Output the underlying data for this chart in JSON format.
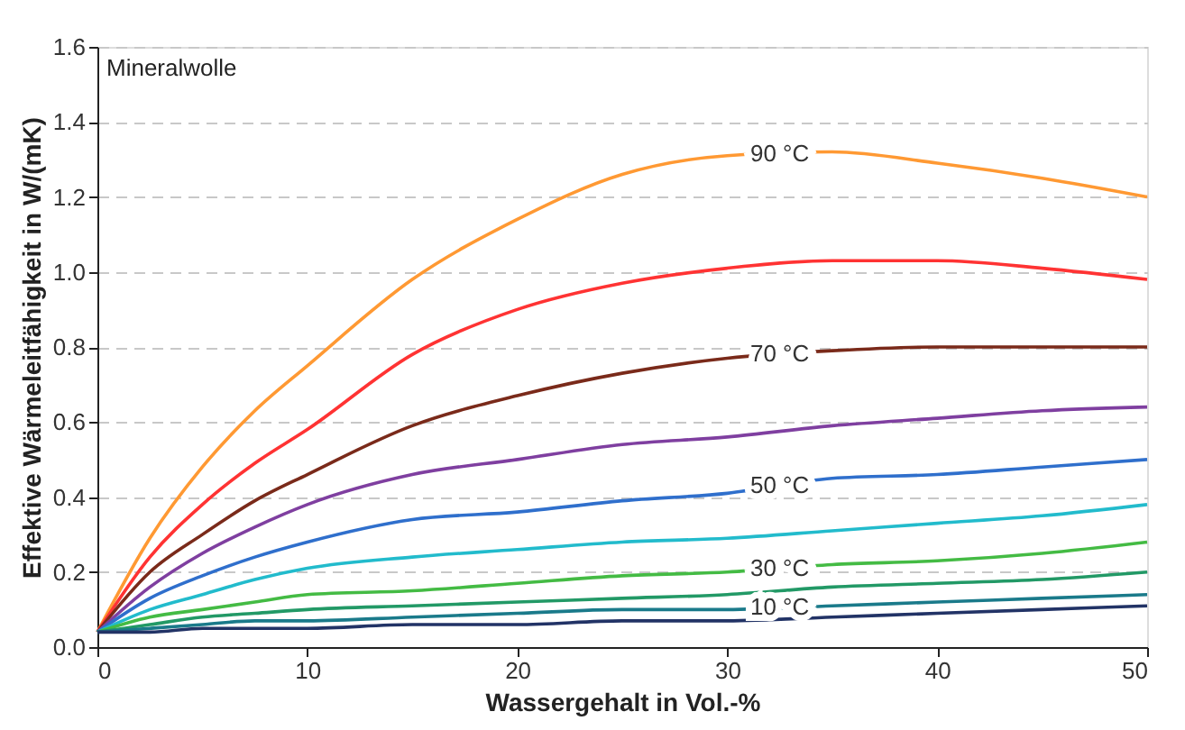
{
  "chart_data": {
    "type": "line",
    "xlabel": "Wassergehalt in Vol.-%",
    "ylabel": "Effektive Wärmeleitfähigkeit in W/(mK)",
    "annotations": [
      "Mineralwolle"
    ],
    "x": [
      0,
      2.5,
      5,
      7.5,
      10,
      15,
      20,
      25,
      30,
      35,
      40,
      45,
      50
    ],
    "xlim": [
      0,
      50
    ],
    "xticks": [
      0,
      10,
      20,
      30,
      40,
      50
    ],
    "ylim": [
      0,
      1.6
    ],
    "yticks": [
      {
        "value": 0,
        "label": "0.0"
      },
      0.2,
      0.4,
      0.6,
      0.8,
      {
        "value": 1,
        "label": "1.0"
      },
      1.2,
      1.4,
      1.6
    ],
    "grid": "y",
    "legend": false,
    "marker": "none",
    "line_style": "solid",
    "series": [
      {
        "name": "90 °C",
        "color": "#ff9933",
        "values": [
          0.04,
          0.29,
          0.48,
          0.63,
          0.75,
          0.98,
          1.14,
          1.26,
          1.31,
          1.32,
          1.29,
          1.25,
          1.2
        ]
      },
      {
        "color": "#ff3333",
        "values": [
          0.04,
          0.24,
          0.38,
          0.49,
          0.58,
          0.78,
          0.9,
          0.97,
          1.01,
          1.03,
          1.03,
          1.01,
          0.98
        ]
      },
      {
        "name": "70 °C",
        "color": "#7a2a1a",
        "values": [
          0.04,
          0.2,
          0.3,
          0.39,
          0.46,
          0.59,
          0.67,
          0.73,
          0.77,
          0.79,
          0.8,
          0.8,
          0.8
        ]
      },
      {
        "color": "#7f3fa0",
        "values": [
          0.04,
          0.16,
          0.25,
          0.32,
          0.38,
          0.46,
          0.5,
          0.54,
          0.56,
          0.59,
          0.61,
          0.63,
          0.64
        ]
      },
      {
        "name": "50 °C",
        "color": "#2f6fcc",
        "values": [
          0.04,
          0.13,
          0.19,
          0.24,
          0.28,
          0.34,
          0.36,
          0.39,
          0.41,
          0.45,
          0.46,
          0.48,
          0.5
        ]
      },
      {
        "color": "#22bbcc",
        "values": [
          0.04,
          0.1,
          0.14,
          0.18,
          0.21,
          0.24,
          0.26,
          0.28,
          0.29,
          0.31,
          0.33,
          0.35,
          0.38
        ]
      },
      {
        "name": "30 °C",
        "color": "#44bb44",
        "values": [
          0.04,
          0.08,
          0.1,
          0.12,
          0.14,
          0.15,
          0.17,
          0.19,
          0.2,
          0.22,
          0.23,
          0.25,
          0.28
        ]
      },
      {
        "color": "#229966",
        "values": [
          0.04,
          0.06,
          0.08,
          0.09,
          0.1,
          0.11,
          0.12,
          0.13,
          0.14,
          0.16,
          0.17,
          0.18,
          0.2
        ]
      },
      {
        "name": "10 °C",
        "color": "#1a7a8a",
        "values": [
          0.04,
          0.05,
          0.06,
          0.07,
          0.07,
          0.08,
          0.09,
          0.1,
          0.1,
          0.11,
          0.12,
          0.13,
          0.14
        ]
      },
      {
        "color": "#223366",
        "values": [
          0.04,
          0.04,
          0.05,
          0.05,
          0.05,
          0.06,
          0.06,
          0.07,
          0.07,
          0.08,
          0.09,
          0.1,
          0.11
        ]
      }
    ]
  }
}
